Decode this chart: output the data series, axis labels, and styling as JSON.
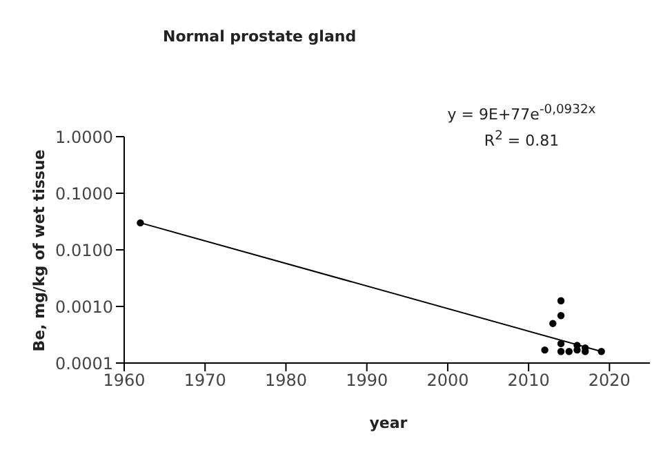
{
  "chart_data": {
    "type": "scatter",
    "title": "Normal prostate gland",
    "xlabel": "year",
    "ylabel": "Be, mg/kg of wet tissue",
    "annotations": [
      "y = 9E+77e$^{-0,0932x}$",
      "R$^{2}$ = 0.81"
    ],
    "log": "y",
    "marker": "circle",
    "xlim": [
      1960,
      2025
    ],
    "xticks": [
      1960,
      1970,
      1980,
      1990,
      2000,
      2010,
      2020
    ],
    "ylim": [
      0.0001,
      1
    ],
    "yticks": [
      {
        "value": 0.0001,
        "label": "0.0001"
      },
      {
        "value": 0.001,
        "label": "0.0010"
      },
      {
        "value": 0.01,
        "label": "0.0100"
      },
      {
        "value": 0.1,
        "label": "0.1000"
      },
      {
        "value": 1,
        "label": "1.0000"
      }
    ],
    "series": [
      {
        "color": "#000000",
        "x": [
          1962,
          2012,
          2013,
          2014,
          2014,
          2014,
          2014,
          2015,
          2016,
          2016,
          2017,
          2017,
          2019
        ],
        "values": [
          0.03,
          0.00017,
          0.0005,
          0.00126,
          0.00069,
          0.00022,
          0.00016,
          0.00016,
          0.000205,
          0.00017,
          0.000185,
          0.00016,
          0.00016
        ]
      },
      {
        "type": "line",
        "color": "#000000",
        "marker": "none",
        "x": [
          1962,
          2019
        ],
        "values": [
          0.03,
          0.00016
        ]
      }
    ]
  }
}
